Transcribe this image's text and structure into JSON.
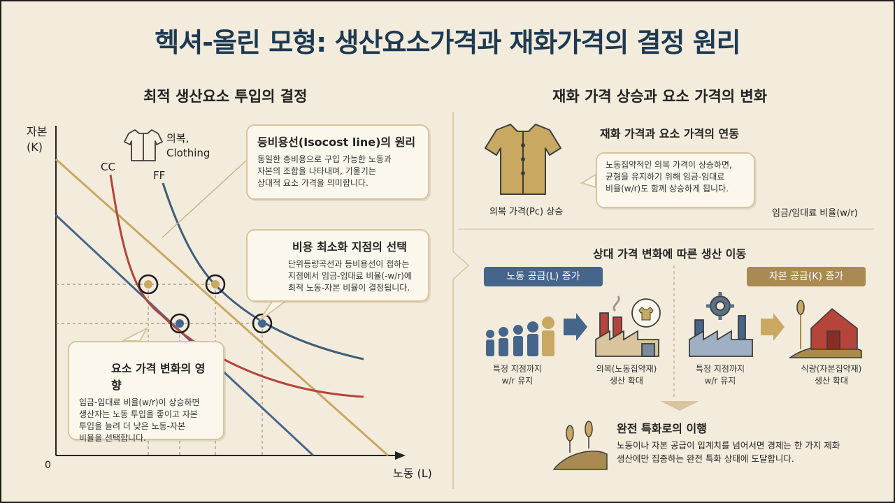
{
  "title": "헥셔-올린 모형: 생산요소가격과 재화가격의 결정 원리",
  "left": {
    "heading": "최적 생산요소 투입의 결정",
    "axis_y": [
      "자본",
      "(K)"
    ],
    "axis_x": "노동 (L)",
    "origin": "0",
    "curve_cc": "CC",
    "curve_ff": "FF",
    "clothing": [
      "의복,",
      "Clothing"
    ],
    "isocost": {
      "title": "등비용선(Isocost line)의 원리",
      "body": [
        "동일한 총비용으로 구입 가능한 노동과",
        "자본의 조합을 나타내며, 기울기는",
        "상대적 요소 가격을 의미합니다."
      ]
    },
    "cost_min": {
      "title": "비용 최소화 지점의 선택",
      "body": [
        "단위등량곡선과 등비용선이 접하는",
        "지점에서 임금-임대료 비율(-w/r)에",
        "최적 노동-자본 비율이 결정됩니다."
      ]
    },
    "price_effect": {
      "title": "요소 가격 변화의 영향",
      "body": [
        "임금-임대료 비율(w/r)이 상승하면",
        "생산자는 노동 투입을 좋이고 자본",
        "투입을 늘려 더 낮은 노동-자본",
        "비율을 선택합니다."
      ]
    }
  },
  "right": {
    "heading": "재화 가격 상승과 요소 가격의 변화",
    "link": {
      "title": "재화 가격과 요소 가격의 연동",
      "body": [
        "노동집약적인 의복 가격이 상승하면,",
        "균형을 유지하기 위해 임금-임대료",
        "비율(w/r)도 함께 상승하게 됩니다."
      ],
      "shirt_caption": "의복 가격(Pc) 상승",
      "ratio_caption": "임금/임대료 비율(w/r)"
    },
    "shift": {
      "title": "상대 가격 변화에 따른 생산 이동",
      "labor_pill": "노동 공급(L) 증가",
      "capital_pill": "자본 공급(K) 증가",
      "labor_left": [
        "특정 지점까지",
        "w/r 유지"
      ],
      "labor_right": [
        "의복(노동집약재)",
        "생산 확대"
      ],
      "capital_left": [
        "특정 지점까지",
        "w/r 유지"
      ],
      "capital_right": [
        "식량(자본집약재)",
        "생산 확대"
      ]
    },
    "special": {
      "title": "완전 특화로의 이행",
      "body": [
        "노동이나 자본 공급이 입계치를 넘어서면 경제는 한 가지 제화",
        "생산에만 집중하는 완전 특화 상태에 도달합니다."
      ]
    }
  },
  "colors": {
    "navy": "#1e3a52",
    "cc": "#b5443a",
    "ff": "#3f5d7a",
    "iso": "#c9a862",
    "steel": "#46658a",
    "tan": "#a88a52"
  }
}
